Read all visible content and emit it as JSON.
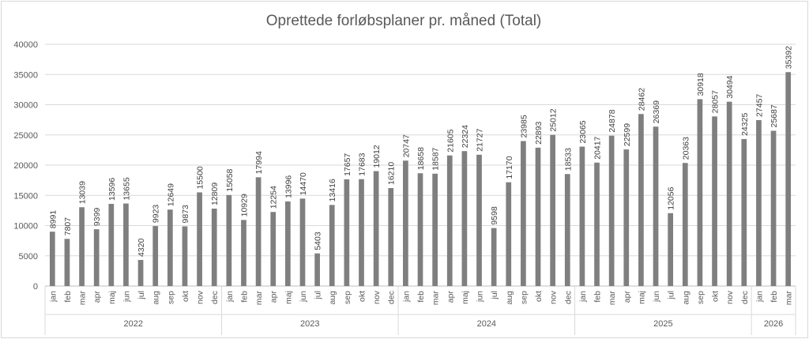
{
  "chart_data": {
    "type": "bar",
    "title": "Oprettede forløbsplaner pr. måned (Total)",
    "xlabel": "",
    "ylabel": "",
    "ylim": [
      0,
      40000
    ],
    "yticks": [
      0,
      5000,
      10000,
      15000,
      20000,
      25000,
      30000,
      35000,
      40000
    ],
    "grid": true,
    "legend": "none",
    "bar_color": "#7f7f7f",
    "groups": [
      {
        "year": "2022",
        "months": [
          "jan",
          "feb",
          "mar",
          "apr",
          "maj",
          "jun",
          "jul",
          "aug",
          "sep",
          "okt",
          "nov",
          "dec"
        ],
        "values": [
          8991,
          7807,
          13039,
          9399,
          13596,
          13655,
          4320,
          9923,
          12649,
          9873,
          15500,
          12809
        ]
      },
      {
        "year": "2023",
        "months": [
          "jan",
          "feb",
          "mar",
          "apr",
          "maj",
          "jun",
          "jul",
          "aug",
          "sep",
          "okt",
          "nov",
          "dec"
        ],
        "values": [
          15058,
          10929,
          17994,
          12254,
          13996,
          14470,
          5403,
          13416,
          17657,
          17683,
          19012,
          16210
        ]
      },
      {
        "year": "2024",
        "months": [
          "jan",
          "feb",
          "mar",
          "apr",
          "maj",
          "jun",
          "jul",
          "aug",
          "sep",
          "okt",
          "nov",
          "dec"
        ],
        "values": [
          20747,
          18658,
          18587,
          21605,
          22324,
          21727,
          9598,
          17170,
          23985,
          22893,
          25012,
          18533
        ]
      },
      {
        "year": "2025",
        "months": [
          "jan",
          "feb",
          "mar",
          "apr",
          "maj",
          "jun",
          "jul",
          "aug",
          "sep",
          "okt",
          "nov",
          "dec"
        ],
        "values": [
          23065,
          20417,
          24878,
          22599,
          28462,
          26369,
          12056,
          20363,
          30918,
          28057,
          30494,
          24325
        ]
      },
      {
        "year": "2026",
        "months": [
          "jan",
          "feb",
          "mar"
        ],
        "values": [
          27457,
          25687,
          35392
        ]
      }
    ]
  }
}
